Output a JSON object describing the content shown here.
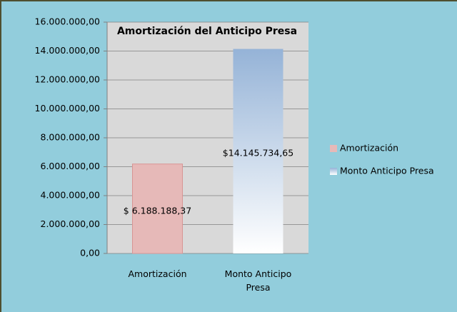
{
  "chart_data": {
    "type": "bar",
    "title": "Amortización del Anticipo Presa",
    "categories": [
      "Amortización",
      "Monto Anticipo Presa"
    ],
    "values": [
      6188188.37,
      14145734.65
    ],
    "value_labels": [
      "$ 6.188.188,37",
      "$14.145.734,65"
    ],
    "colors": [
      "#e6b9b8",
      "#95b3d7"
    ],
    "gradient": [
      false,
      true
    ],
    "ylim": [
      0,
      16000000
    ],
    "yticks": [
      {
        "value": 0,
        "label": "0,00"
      },
      {
        "value": 2000000,
        "label": "2.000.000,00"
      },
      {
        "value": 4000000,
        "label": "4.000.000,00"
      },
      {
        "value": 6000000,
        "label": "6.000.000,00"
      },
      {
        "value": 8000000,
        "label": "8.000.000,00"
      },
      {
        "value": 10000000,
        "label": "10.000.000,00"
      },
      {
        "value": 12000000,
        "label": "12.000.000,00"
      },
      {
        "value": 14000000,
        "label": "14.000.000,00"
      },
      {
        "value": 16000000,
        "label": "16.000.000,00"
      }
    ],
    "grid": true,
    "legend": "right"
  }
}
